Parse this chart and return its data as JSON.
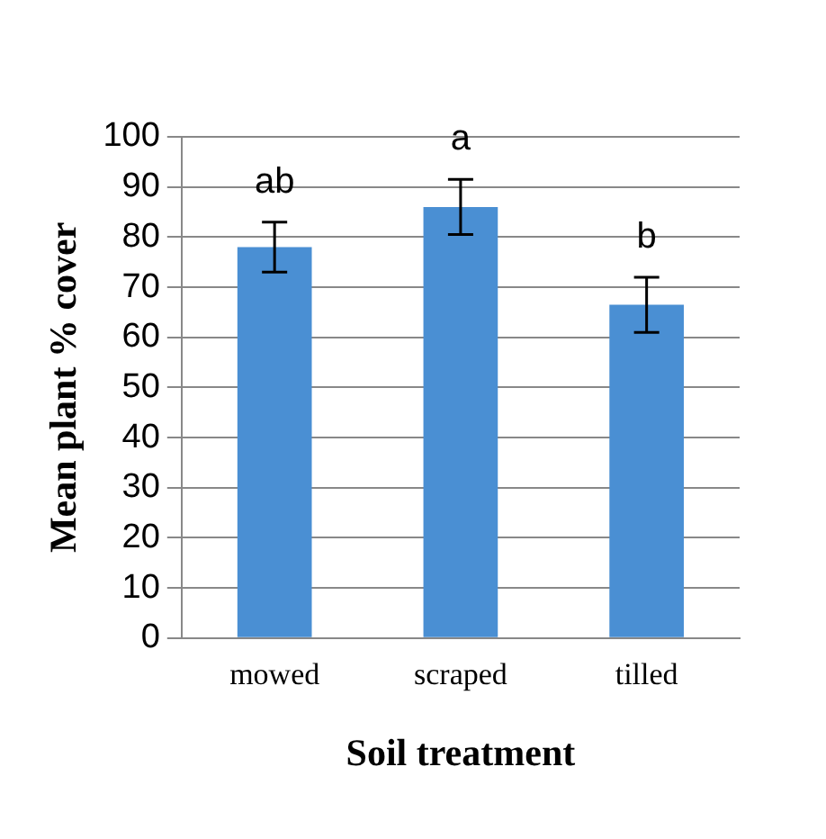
{
  "chart_data": {
    "type": "bar",
    "xlabel": "Soil treatment",
    "ylabel": "Mean plant % cover",
    "categories": [
      "mowed",
      "scraped",
      "tilled"
    ],
    "values": [
      78,
      86,
      66.5
    ],
    "errors": [
      5,
      5.5,
      5.5
    ],
    "color": "#4a8fd3",
    "ylim": [
      0,
      100
    ],
    "yticks": [
      0,
      10,
      20,
      30,
      40,
      50,
      60,
      70,
      80,
      90,
      100
    ],
    "grid": "y",
    "legend": false,
    "annotations": [
      "ab",
      "a",
      "b"
    ]
  }
}
